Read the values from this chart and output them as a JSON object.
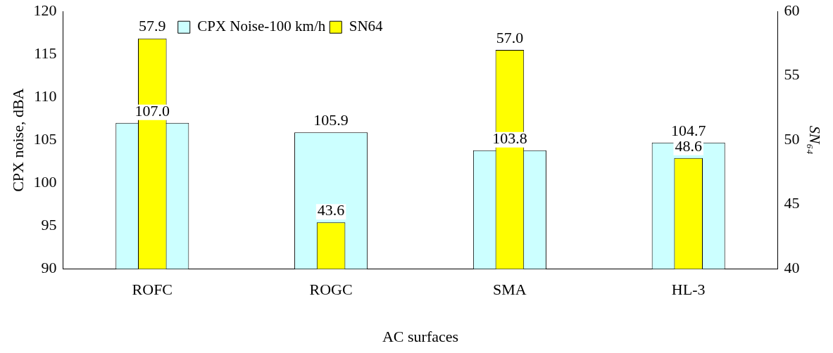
{
  "chart_data": {
    "type": "bar",
    "xlabel": "AC surfaces",
    "ylabel": "CPX noise, dBA",
    "y2label": "SN₆₄",
    "categories": [
      "ROFC",
      "ROGC",
      "SMA",
      "HL-3"
    ],
    "series": [
      {
        "name": "CPX Noise-100 km/h",
        "color": "#ccffff",
        "values": [
          107.0,
          105.9,
          103.8,
          104.7
        ],
        "value_labels": [
          "107.0",
          "105.9",
          "103.8",
          "104.7"
        ]
      },
      {
        "name": "SN64",
        "color": "#ffff00",
        "axis": "y2",
        "values": [
          57.9,
          43.6,
          57.0,
          48.6
        ],
        "value_labels": [
          "57.9",
          "43.6",
          "57.0",
          "48.6"
        ]
      }
    ],
    "ylim": [
      90,
      120
    ],
    "yticks": [
      90,
      95,
      100,
      105,
      110,
      115,
      120
    ],
    "y2lim": [
      40,
      60
    ],
    "y2ticks": [
      40,
      45,
      50,
      55,
      60
    ],
    "grid": false,
    "legend": "top"
  }
}
